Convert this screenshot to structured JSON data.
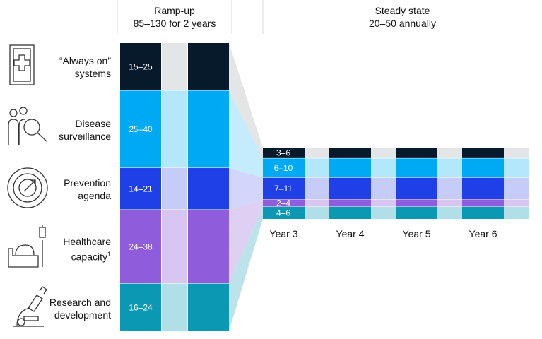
{
  "headers": {
    "rampup_title": "Ramp-up",
    "rampup_subtitle": "85–130 for 2 years",
    "steady_title": "Steady state",
    "steady_subtitle": "20–50 annually"
  },
  "chart_data": {
    "type": "bar",
    "categories": [
      "“Always on” systems",
      "Disease surveillance",
      "Prevention agenda",
      "Healthcare capacity",
      "Research and development"
    ],
    "footnote_marker": "1",
    "rampup": {
      "ranges": [
        [
          15,
          25
        ],
        [
          25,
          40
        ],
        [
          14,
          21
        ],
        [
          24,
          38
        ],
        [
          16,
          24
        ]
      ],
      "labels": [
        "15–25",
        "25–40",
        "14–21",
        "24–38",
        "16–24"
      ]
    },
    "steady_state": {
      "years": [
        "Year 3",
        "Year 4",
        "Year 5",
        "Year 6"
      ],
      "ranges": [
        [
          3,
          6
        ],
        [
          6,
          10
        ],
        [
          7,
          11
        ],
        [
          2,
          4
        ],
        [
          4,
          6
        ]
      ],
      "labels": [
        "3–6",
        "6–10",
        "7–11",
        "2–4",
        "4–6"
      ]
    },
    "colors": {
      "dark": [
        "#071a2c",
        "#00a9f4",
        "#1f40e6",
        "#8f5cdc",
        "#0a98b2"
      ],
      "light": [
        "#e3e5e6",
        "#b3e7fb",
        "#c6ccf8",
        "#d9c5f2",
        "#b0dfe7"
      ],
      "connector": [
        "#e3e5e6",
        "#c4ecfc",
        "#d1d6fa",
        "#ddd0f3",
        "#bde3ea"
      ]
    },
    "icons": [
      "hospital-sign-icon",
      "people-magnifier-icon",
      "target-icon",
      "hospital-bed-icon",
      "microscope-icon"
    ]
  }
}
